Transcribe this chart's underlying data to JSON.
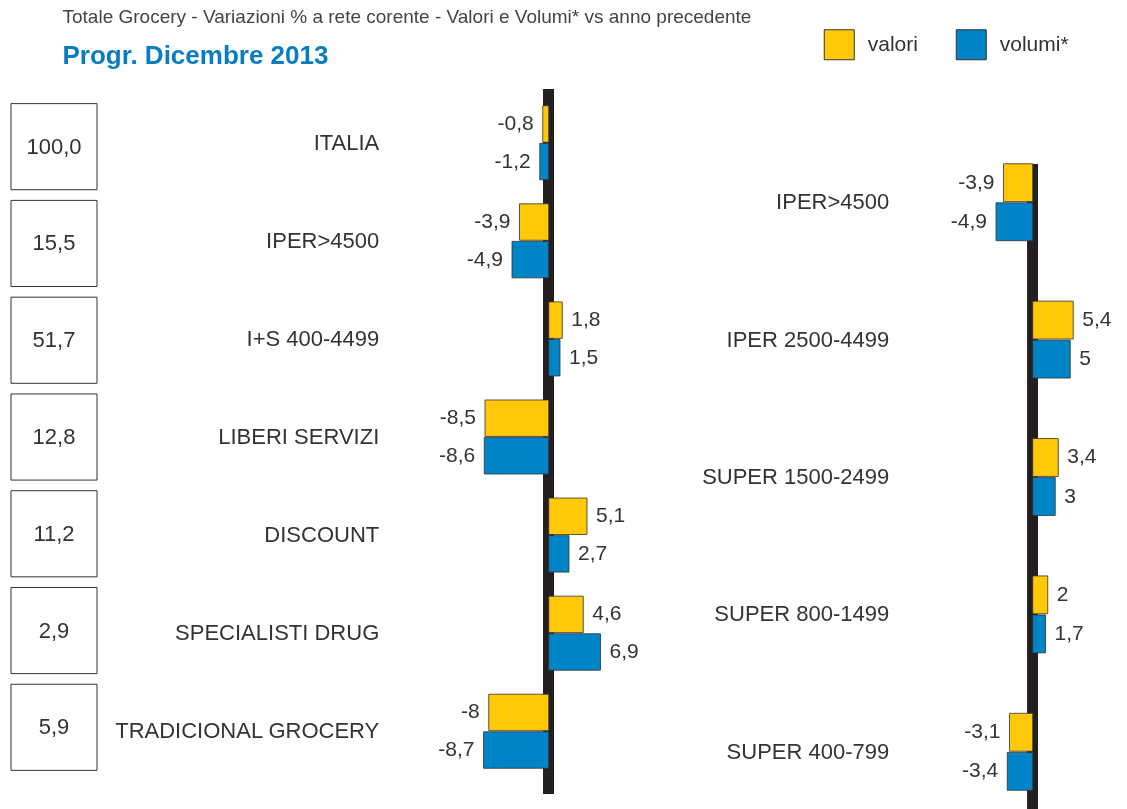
{
  "chart_data": [
    {
      "type": "other",
      "annotations": [
        "100,0",
        "15,5",
        "51,7",
        "12,8",
        "11,2",
        "2,9",
        "5,9"
      ]
    },
    {
      "type": "bar",
      "title": "Totale Grocery - Variazioni % a rete corente - Valori e Volumi* vs anno precedente",
      "subtitle": "Progr. Dicembre 2013",
      "orientation": "horizontal",
      "categories": [
        "ITALIA",
        "IPER>4500",
        "I+S 400-4499",
        "LIBERI SERVIZI",
        "DISCOUNT",
        "SPECIALISTI DRUG",
        "TRADICIONAL GROCERY"
      ],
      "series": [
        {
          "name": "valori",
          "color": "#ffc90a",
          "values": [
            -0.8,
            -3.9,
            1.8,
            -8.5,
            5.1,
            4.6,
            -8
          ],
          "value_labels": [
            "-0,8",
            "-3,9",
            "1,8",
            "-8,5",
            "5,1",
            "4,6",
            "-8"
          ]
        },
        {
          "name": "volumi*",
          "color": "#0084c8",
          "values": [
            -1.2,
            -4.9,
            1.5,
            -8.6,
            2.7,
            6.9,
            -8.7
          ],
          "value_labels": [
            "-1,2",
            "-4,9",
            "1,5",
            "-8,6",
            "2,7",
            "6,9",
            "-8,7"
          ]
        }
      ],
      "tick_labels": "y",
      "legend": "top right"
    },
    {
      "type": "bar",
      "orientation": "horizontal",
      "categories": [
        "IPER>4500",
        "IPER 2500-4499",
        "SUPER 1500-2499",
        "SUPER 800-1499",
        "SUPER 400-799"
      ],
      "series": [
        {
          "color": "#ffc90a",
          "values": [
            -3.9,
            5.4,
            3.4,
            2,
            -3.1
          ],
          "value_labels": [
            "-3,9",
            "5,4",
            "3,4",
            "2",
            "-3,1"
          ]
        },
        {
          "color": "#0084c8",
          "values": [
            -4.9,
            5,
            3,
            1.7,
            -3.4
          ],
          "value_labels": [
            "-4,9",
            "5",
            "3",
            "1,7",
            "-3,4"
          ]
        }
      ],
      "tick_labels": "y"
    }
  ]
}
